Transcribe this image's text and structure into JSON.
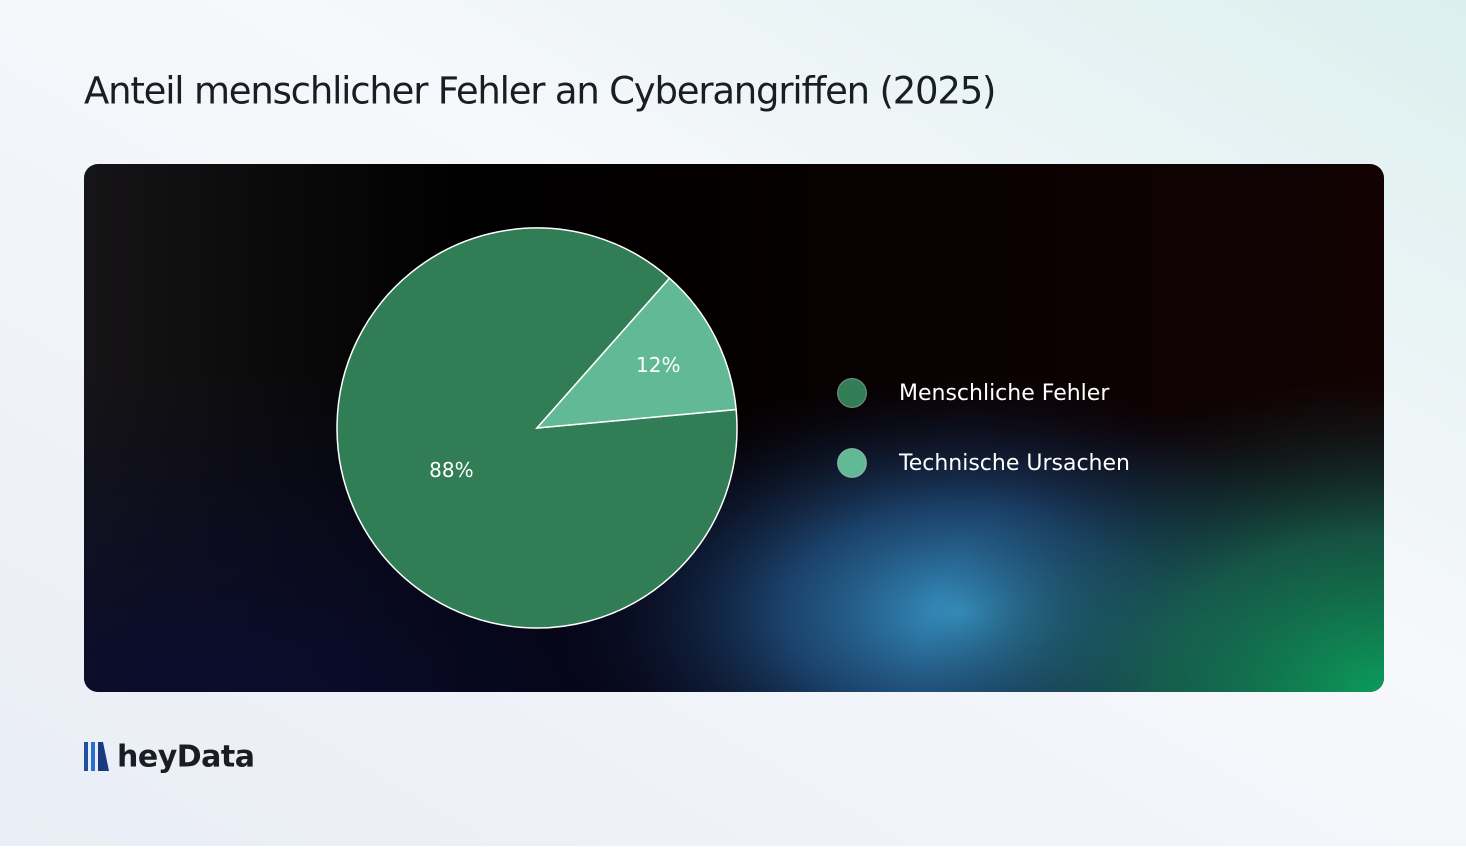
{
  "chart_data": {
    "type": "pie",
    "title": "Anteil menschlicher Fehler an Cyberangriffen (2025)",
    "categories": [
      "Menschliche Fehler",
      "Technische Ursachen"
    ],
    "values": [
      88,
      12
    ],
    "value_labels": [
      "88%",
      "12%"
    ],
    "colors": [
      "#317d56",
      "#62b996"
    ],
    "legend": "right"
  },
  "brand": "heyData"
}
